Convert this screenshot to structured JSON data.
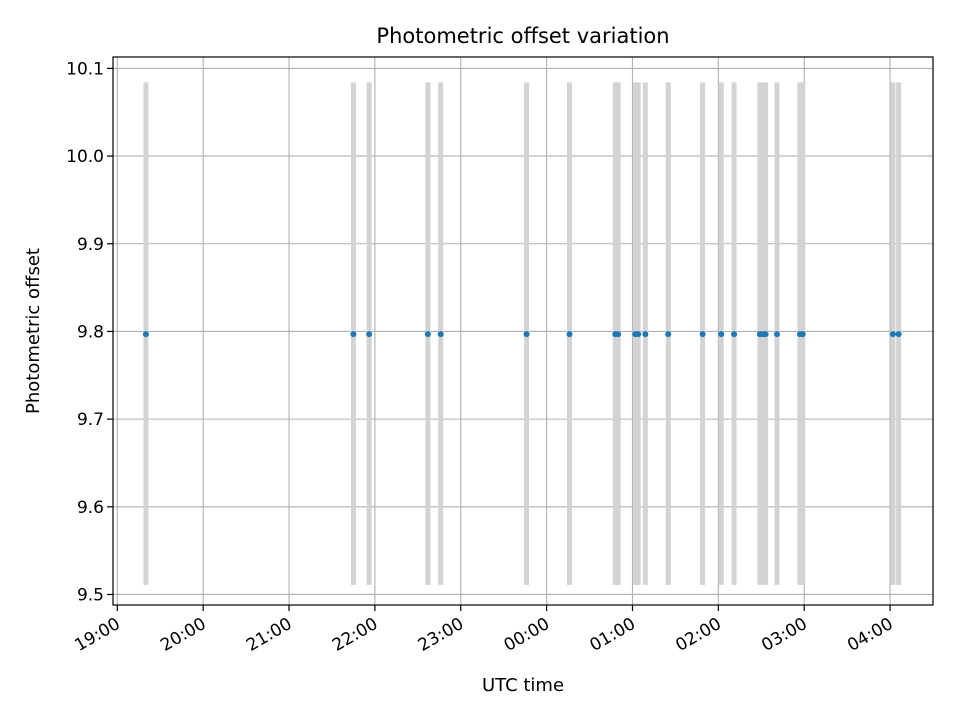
{
  "chart_data": {
    "type": "scatter",
    "title": "Photometric offset variation",
    "xlabel": "UTC time",
    "ylabel": "Photometric offset",
    "x_ticks": [
      "19:00",
      "20:00",
      "21:00",
      "22:00",
      "23:00",
      "00:00",
      "01:00",
      "02:00",
      "03:00",
      "04:00"
    ],
    "y_ticks": [
      "9.5",
      "9.6",
      "9.7",
      "9.8",
      "9.9",
      "10.0",
      "10.1"
    ],
    "xlim": [
      "18:57",
      "04:30"
    ],
    "ylim": [
      9.488,
      10.113
    ],
    "grid": true,
    "colors": {
      "points": "#1f77b4",
      "errorbars": "#d3d3d3",
      "grid": "#b0b0b0"
    },
    "points": [
      {
        "t": "19:20",
        "y": 9.797,
        "err_low": 9.511,
        "err_high": 10.084
      },
      {
        "t": "21:45",
        "y": 9.797,
        "err_low": 9.511,
        "err_high": 10.084
      },
      {
        "t": "21:56",
        "y": 9.797,
        "err_low": 9.511,
        "err_high": 10.084
      },
      {
        "t": "22:37",
        "y": 9.797,
        "err_low": 9.511,
        "err_high": 10.084
      },
      {
        "t": "22:46",
        "y": 9.797,
        "err_low": 9.511,
        "err_high": 10.084
      },
      {
        "t": "23:46",
        "y": 9.797,
        "err_low": 9.511,
        "err_high": 10.084
      },
      {
        "t": "00:16",
        "y": 9.797,
        "err_low": 9.511,
        "err_high": 10.084
      },
      {
        "t": "00:48",
        "y": 9.797,
        "err_low": 9.511,
        "err_high": 10.084
      },
      {
        "t": "00:50",
        "y": 9.797,
        "err_low": 9.511,
        "err_high": 10.084
      },
      {
        "t": "01:02",
        "y": 9.797,
        "err_low": 9.511,
        "err_high": 10.084
      },
      {
        "t": "01:04",
        "y": 9.797,
        "err_low": 9.511,
        "err_high": 10.084
      },
      {
        "t": "01:09",
        "y": 9.797,
        "err_low": 9.511,
        "err_high": 10.084
      },
      {
        "t": "01:25",
        "y": 9.797,
        "err_low": 9.511,
        "err_high": 10.084
      },
      {
        "t": "01:49",
        "y": 9.797,
        "err_low": 9.511,
        "err_high": 10.084
      },
      {
        "t": "02:02",
        "y": 9.797,
        "err_low": 9.511,
        "err_high": 10.084
      },
      {
        "t": "02:11",
        "y": 9.797,
        "err_low": 9.511,
        "err_high": 10.084
      },
      {
        "t": "02:29",
        "y": 9.797,
        "err_low": 9.511,
        "err_high": 10.084
      },
      {
        "t": "02:31",
        "y": 9.797,
        "err_low": 9.511,
        "err_high": 10.084
      },
      {
        "t": "02:33",
        "y": 9.797,
        "err_low": 9.511,
        "err_high": 10.084
      },
      {
        "t": "02:41",
        "y": 9.797,
        "err_low": 9.511,
        "err_high": 10.084
      },
      {
        "t": "02:57",
        "y": 9.797,
        "err_low": 9.511,
        "err_high": 10.084
      },
      {
        "t": "02:59",
        "y": 9.797,
        "err_low": 9.511,
        "err_high": 10.084
      },
      {
        "t": "04:02",
        "y": 9.797,
        "err_low": 9.511,
        "err_high": 10.084
      },
      {
        "t": "04:06",
        "y": 9.797,
        "err_low": 9.511,
        "err_high": 10.084
      }
    ]
  }
}
